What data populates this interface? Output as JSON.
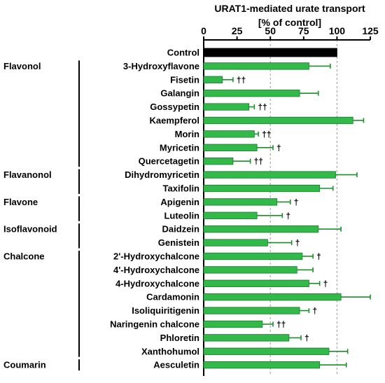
{
  "chart_data": {
    "type": "bar",
    "orientation": "horizontal",
    "title": "URAT1-mediated urate transport",
    "subtitle": "[% of control]",
    "xlabel": "URAT1-mediated urate transport [% of control]",
    "ylabel": "",
    "xlim": [
      0,
      125
    ],
    "x_ticks": [
      "0",
      "25",
      "50",
      "75",
      "100",
      "125"
    ],
    "x_tick_values": [
      0,
      25,
      50,
      75,
      100,
      125
    ],
    "axis_position": "top",
    "grid": "dashed vertical lines at 50 and 100",
    "colors": {
      "control": "#000000",
      "bar": "#33b84a",
      "bar_edge": "#1a7a2a",
      "error": "#1a8f2a"
    },
    "categories": [
      "Control",
      "3-Hydroxyflavone",
      "Fisetin",
      "Galangin",
      "Gossypetin",
      "Kaempferol",
      "Morin",
      "Myricetin",
      "Quercetagetin",
      "Dihydromyricetin",
      "Taxifolin",
      "Apigenin",
      "Luteolin",
      "Daidzein",
      "Genistein",
      "2'-Hydroxychalcone",
      "4'-Hydroxychalcone",
      "4-Hydroxychalcone",
      "Cardamonin",
      "Isoliquiritigenin",
      "Naringenin chalcone",
      "Phloretin",
      "Xanthohumol",
      "Aesculetin"
    ],
    "values": [
      100,
      79,
      14,
      72,
      34,
      112,
      38,
      40,
      22,
      99,
      87,
      55,
      40,
      86,
      48,
      74,
      70,
      79,
      103,
      72,
      44,
      64,
      94,
      87
    ],
    "errors": [
      0,
      16,
      8,
      14,
      4,
      8,
      3,
      12,
      13,
      16,
      10,
      10,
      19,
      17,
      18,
      8,
      12,
      8,
      22,
      7,
      8,
      9,
      14,
      20
    ],
    "significance": [
      "",
      "",
      "††",
      "",
      "††",
      "",
      "††",
      "†",
      "††",
      "",
      "",
      "†",
      "†",
      "",
      "†",
      "†",
      "",
      "†",
      "",
      "†",
      "††",
      "†",
      "",
      ""
    ],
    "groups": [
      {
        "label": "Flavonol",
        "start": 1,
        "end": 8
      },
      {
        "label": "Flavanonol",
        "start": 9,
        "end": 10
      },
      {
        "label": "Flavone",
        "start": 11,
        "end": 12
      },
      {
        "label": "Isoflavonoid",
        "start": 13,
        "end": 14
      },
      {
        "label": "Chalcone",
        "start": 15,
        "end": 22
      },
      {
        "label": "Coumarin",
        "start": 23,
        "end": 23
      }
    ]
  }
}
